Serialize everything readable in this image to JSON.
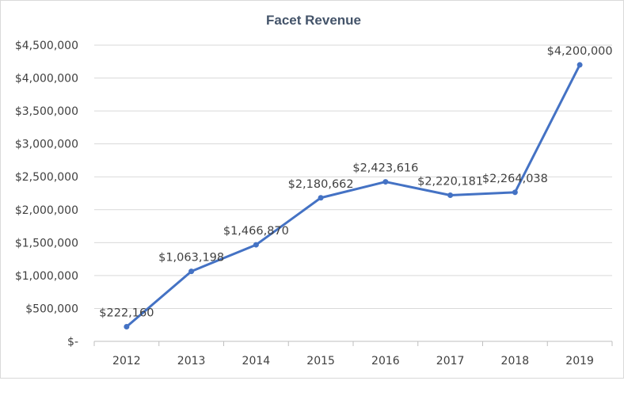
{
  "chart_data": {
    "type": "line",
    "title": "Facet Revenue",
    "xlabel": "",
    "ylabel": "",
    "categories": [
      "2012",
      "2013",
      "2014",
      "2015",
      "2016",
      "2017",
      "2018",
      "2019"
    ],
    "series": [
      {
        "values": [
          222160,
          1063198,
          1466870,
          2180662,
          2423616,
          2220181,
          2264038,
          4200000
        ],
        "data_labels": [
          "$222,160",
          "$1,063,198",
          "$1,466,870",
          "$2,180,662",
          "$2,423,616",
          "$2,220,181",
          "$2,264,038",
          "$4,200,000"
        ]
      }
    ],
    "ylim": [
      0,
      4500000
    ],
    "yticks": [
      0,
      500000,
      1000000,
      1500000,
      2000000,
      2500000,
      3000000,
      3500000,
      4000000,
      4500000
    ],
    "ytick_labels": [
      "$-",
      "$500,000",
      "$1,000,000",
      "$1,500,000",
      "$2,000,000",
      "$2,500,000",
      "$3,000,000",
      "$3,500,000",
      "$4,000,000",
      "$4,500,000"
    ],
    "grid": true,
    "legend": "none",
    "colors": {
      "series": "#4472c4",
      "grid": "#d9d9d9",
      "text": "#404040",
      "title": "#44546a"
    }
  }
}
